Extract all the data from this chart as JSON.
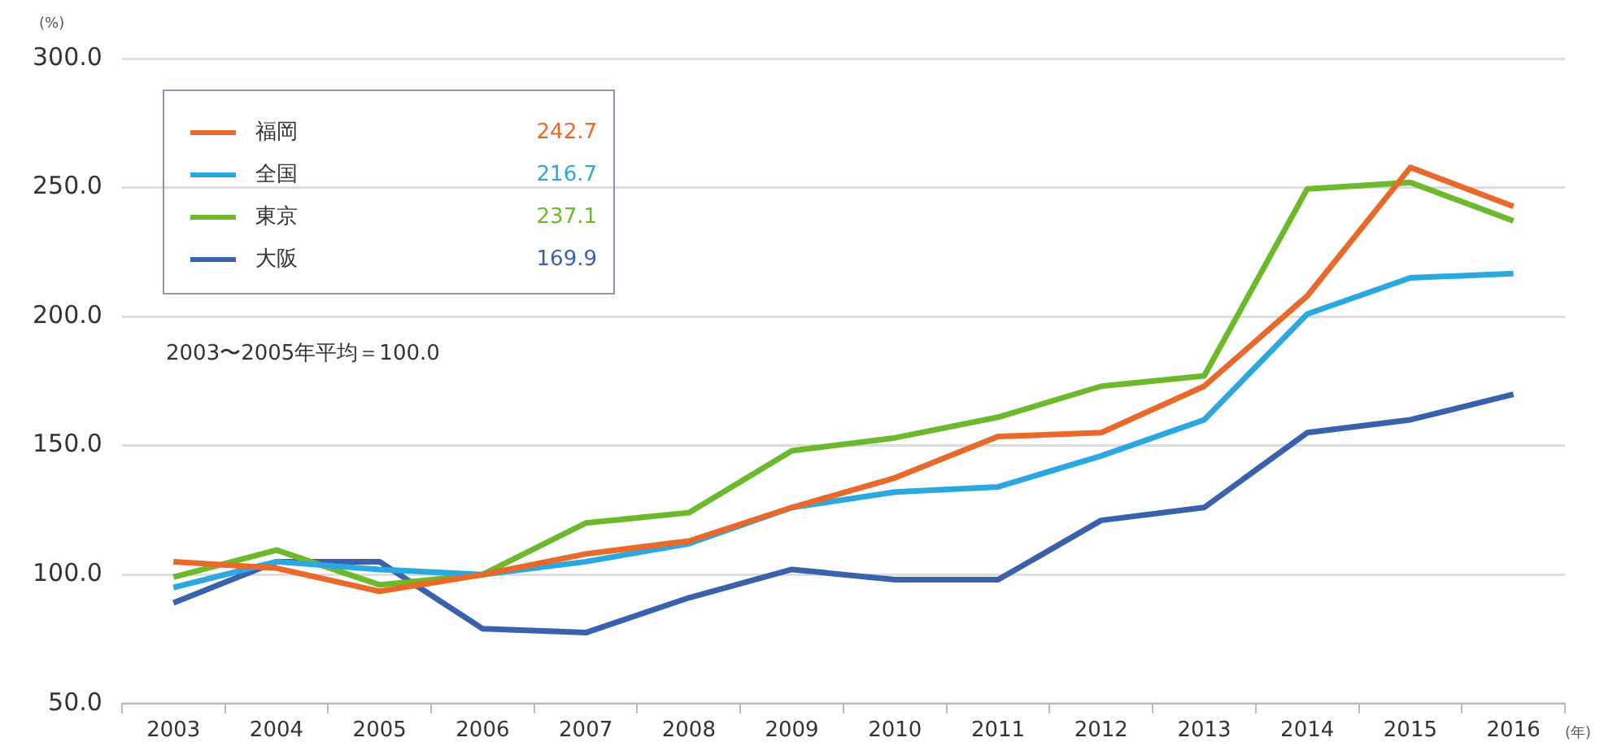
{
  "chart_data": {
    "type": "line",
    "ylabel": "(%)",
    "xlabel": "(年)",
    "categories": [
      "2003",
      "2004",
      "2005",
      "2006",
      "2007",
      "2008",
      "2009",
      "2010",
      "2011",
      "2012",
      "2013",
      "2014",
      "2015",
      "2016"
    ],
    "series": [
      {
        "name": "福岡",
        "color": "#e8692a",
        "values": [
          105,
          102.5,
          93.5,
          100,
          108,
          113,
          126,
          137.5,
          153.5,
          155,
          173,
          208,
          257.8,
          242.7
        ]
      },
      {
        "name": "全国",
        "color": "#2ba8e0",
        "values": [
          95,
          105,
          102,
          100,
          105,
          112,
          126,
          132,
          134,
          146,
          160,
          201,
          215,
          216.7
        ]
      },
      {
        "name": "東京",
        "color": "#6cb92c",
        "values": [
          99,
          109.5,
          96,
          100,
          120,
          124,
          148,
          153,
          161,
          173,
          177,
          249.5,
          252,
          237.1
        ]
      },
      {
        "name": "大阪",
        "color": "#3a62ac",
        "values": [
          89,
          105,
          105,
          79,
          77.5,
          91,
          102,
          98,
          98,
          121,
          126,
          155,
          160,
          169.9
        ]
      }
    ],
    "ylim": [
      50,
      300
    ],
    "yticks": [
      {
        "value": 50,
        "label": "50.0"
      },
      {
        "value": 100,
        "label": "100.0"
      },
      {
        "value": 150,
        "label": "150.0"
      },
      {
        "value": 200,
        "label": "200.0"
      },
      {
        "value": 250,
        "label": "250.0"
      },
      {
        "value": 300,
        "label": "300.0"
      }
    ],
    "grid": "y",
    "legend": "top left",
    "marker": "none",
    "line_style": "solid",
    "annotations": [
      "2003〜2005年平均＝100.0",
      "242.7",
      "216.7",
      "237.1",
      "169.9"
    ]
  }
}
